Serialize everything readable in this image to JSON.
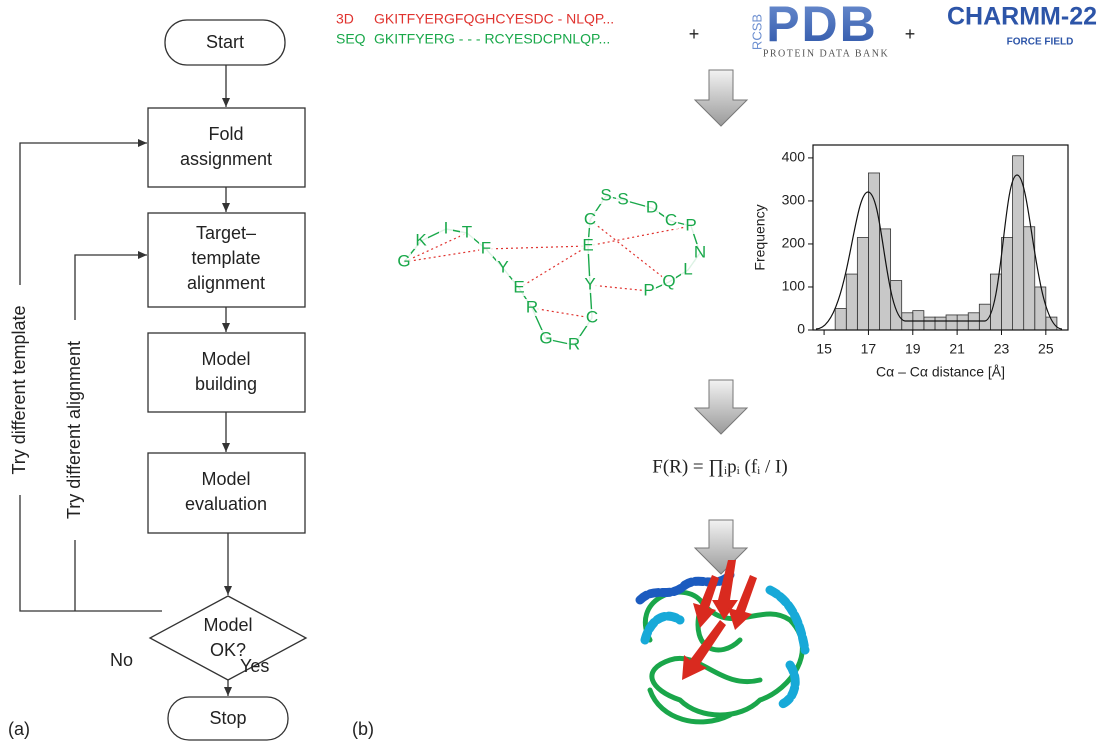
{
  "flowchart": {
    "start": "Start",
    "steps": [
      [
        "Fold",
        "assignment"
      ],
      [
        "Target–",
        "template",
        "alignment"
      ],
      [
        "Model",
        "building"
      ],
      [
        "Model",
        "evaluation"
      ]
    ],
    "decision": [
      "Model",
      "OK?"
    ],
    "stop": "Stop",
    "yes": "Yes",
    "no": "No",
    "loops": [
      "Try different template",
      "Try different alignment"
    ],
    "label": "(a)"
  },
  "alignment": {
    "rows": [
      {
        "name": "3D",
        "sequence": "GKITFYERGFQGHCYESDC - NLQP..."
      },
      {
        "name": "SEQ",
        "sequence": "GKITFYERG - - - RCYESDCPNLQP..."
      }
    ]
  },
  "plus": "+",
  "logos": {
    "pdb": {
      "side": "RCSB",
      "main": "PDB",
      "sub": "PROTEIN DATA BANK"
    },
    "charmm": {
      "main": "CHARMM-22",
      "sub": "FORCE FIELD"
    }
  },
  "peptide": {
    "residues": [
      "G",
      "K",
      "I",
      "T",
      "F",
      "Y",
      "E",
      "R",
      "G",
      "R",
      "C",
      "Y",
      "E",
      "C",
      "S",
      "S",
      "D",
      "C",
      "P",
      "N",
      "L",
      "Q",
      "P"
    ]
  },
  "histogram": {
    "type": "histogram",
    "color": "#c8c8c8",
    "bins": [
      15.5,
      16,
      16.5,
      17,
      17.5,
      18,
      18.5,
      19,
      19.5,
      20,
      20.5,
      21,
      21.5,
      22,
      22.5,
      23,
      23.5,
      24,
      24.5,
      25,
      25.5
    ],
    "counts": [
      50,
      130,
      215,
      365,
      235,
      115,
      40,
      45,
      30,
      30,
      35,
      35,
      40,
      60,
      130,
      215,
      405,
      240,
      100,
      30
    ],
    "xlim": [
      14.5,
      26
    ],
    "ylim": [
      0,
      430
    ],
    "xticks": [
      15,
      17,
      19,
      21,
      23,
      25
    ],
    "yticks": [
      0,
      100,
      200,
      300,
      400
    ],
    "xlabel": "Cα – Cα distance [Å]",
    "ylabel": "Frequency"
  },
  "formula": "F(R) = ∏ᵢpᵢ (fᵢ / I)",
  "panel_b_label": "(b)"
}
